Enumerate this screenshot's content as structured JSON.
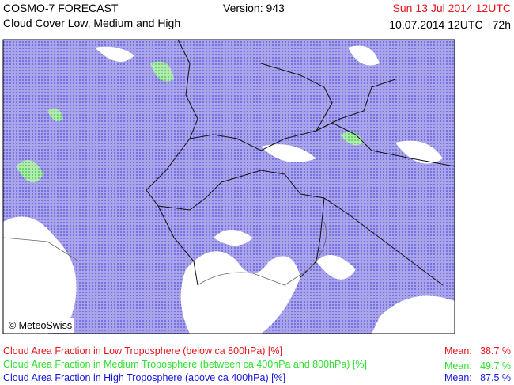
{
  "header": {
    "title": "COSMO-7 FORECAST",
    "subtitle": "Cloud Cover Low, Medium and High",
    "version": "Version: 943",
    "valid_time": "Sun 13 Jul 2014 12UTC",
    "run_time": "10.07.2014 12UTC +72h"
  },
  "map": {
    "credit": "© MeteoSwiss"
  },
  "legend": [
    {
      "label": "Cloud Area Fraction in Low Troposphere (below ca 800hPa) [%]",
      "mean_label": "Mean:",
      "mean": "38.7 %"
    },
    {
      "label": "Cloud Area Fraction in Medium Troposphere (between ca 400hPa and 800hPa) [%]",
      "mean_label": "Mean:",
      "mean": "49.7 %"
    },
    {
      "label": "Cloud Area Fraction in High Troposphere (above ca 400hPa) [%]",
      "mean_label": "Mean:",
      "mean": "87.5 %"
    }
  ]
}
